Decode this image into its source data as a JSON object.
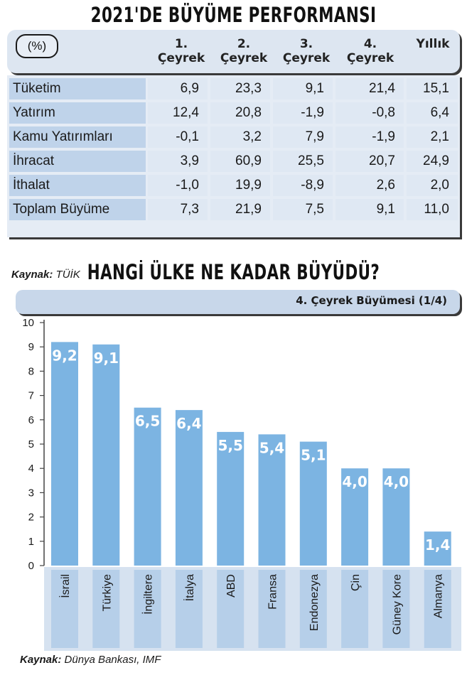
{
  "table": {
    "title": "2021'DE BÜYÜME PERFORMANSI",
    "unit": "(%)",
    "columns": [
      {
        "line1": "1.",
        "line2": "Çeyrek"
      },
      {
        "line1": "2.",
        "line2": "Çeyrek"
      },
      {
        "line1": "3.",
        "line2": "Çeyrek"
      },
      {
        "line1": "4.",
        "line2": "Çeyrek"
      },
      {
        "line1": "",
        "line2": "Yıllık"
      }
    ],
    "rows": [
      {
        "label": "Tüketim",
        "values": [
          "6,9",
          "23,3",
          "9,1",
          "21,4",
          "15,1"
        ]
      },
      {
        "label": "Yatırım",
        "values": [
          "12,4",
          "20,8",
          "-1,9",
          "-0,8",
          "6,4"
        ]
      },
      {
        "label": "Kamu Yatırımları",
        "values": [
          "-0,1",
          "3,2",
          "7,9",
          "-1,9",
          "2,1"
        ]
      },
      {
        "label": "İhracat",
        "values": [
          "3,9",
          "60,9",
          "25,5",
          "20,7",
          "24,9"
        ]
      },
      {
        "label": "İthalat",
        "values": [
          "-1,0",
          "19,9",
          "-8,9",
          "2,6",
          "2,0"
        ]
      },
      {
        "label": "Toplam Büyüme",
        "values": [
          "7,3",
          "21,9",
          "7,5",
          "9,1",
          "11,0"
        ]
      }
    ],
    "source_label": "Kaynak:",
    "source_text": "TÜİK"
  },
  "chart_data": {
    "type": "bar",
    "title": "HANGİ ÜLKE NE KADAR BÜYÜDÜ?",
    "subtitle": "4. Çeyrek Büyümesi (1/4)",
    "categories": [
      "İsrail",
      "Türkiye",
      "İngiltere",
      "İtalya",
      "ABD",
      "Fransa",
      "Endonezya",
      "Çin",
      "Güney Kore",
      "Almanya"
    ],
    "values": [
      9.2,
      9.1,
      6.5,
      6.4,
      5.5,
      5.4,
      5.1,
      4.0,
      4.0,
      1.4
    ],
    "value_labels": [
      "9,2",
      "9,1",
      "6,5",
      "6,4",
      "5,5",
      "5,4",
      "5,1",
      "4,0",
      "4,0",
      "1,4"
    ],
    "ylim": [
      0,
      10
    ],
    "yticks": [
      0,
      1,
      2,
      3,
      4,
      5,
      6,
      7,
      8,
      9,
      10
    ],
    "grid": false,
    "bar_color": "#7cb4e2",
    "source_label": "Kaynak:",
    "source_text": "Dünya Bankası, IMF"
  }
}
